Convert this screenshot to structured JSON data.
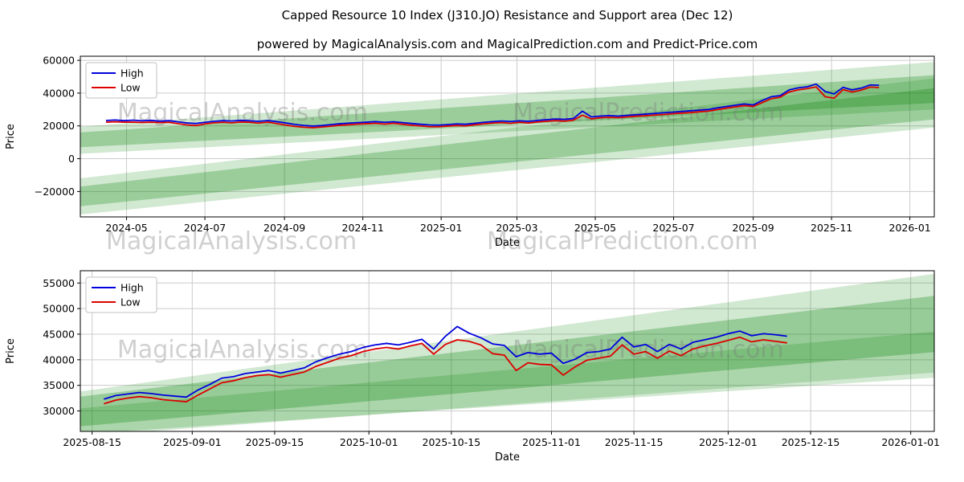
{
  "figure": {
    "title": "Capped Resource 10 Index (J310.JO) Resistance and Support area (Dec 12)",
    "subtitle": "powered by MagicalAnalysis.com and MagicalPrediction.com and Predict-Price.com",
    "watermark_left": "MagicalAnalysis.com",
    "watermark_right": "MagicalPrediction.com"
  },
  "colors": {
    "high": "#0000dd",
    "low": "#dd0000",
    "band": "#008000",
    "grid": "#cccccc",
    "frame": "#000000",
    "watermark": "rgba(120,120,120,0.35)",
    "legend_border": "#c0c0c0"
  },
  "chart_data": [
    {
      "type": "line",
      "xlabel": "Date",
      "ylabel": "Price",
      "legend_position": "upper-left",
      "grid": true,
      "xlim": [
        -20,
        645
      ],
      "ylim": [
        -35500,
        62500
      ],
      "xticks": [
        {
          "t": 16,
          "label": "2024-05"
        },
        {
          "t": 77,
          "label": "2024-07"
        },
        {
          "t": 139,
          "label": "2024-09"
        },
        {
          "t": 200,
          "label": "2024-11"
        },
        {
          "t": 261,
          "label": "2025-01"
        },
        {
          "t": 320,
          "label": "2025-03"
        },
        {
          "t": 381,
          "label": "2025-05"
        },
        {
          "t": 442,
          "label": "2025-07"
        },
        {
          "t": 504,
          "label": "2025-09"
        },
        {
          "t": 565,
          "label": "2025-11"
        },
        {
          "t": 626,
          "label": "2026-01"
        }
      ],
      "yticks": [
        {
          "v": -20000,
          "label": "−20000"
        },
        {
          "v": 0,
          "label": "0"
        },
        {
          "v": 20000,
          "label": "20000"
        },
        {
          "v": 40000,
          "label": "40000"
        },
        {
          "v": 60000,
          "label": "60000"
        }
      ],
      "x": [
        0,
        7,
        14,
        21,
        28,
        35,
        42,
        49,
        56,
        63,
        70,
        77,
        84,
        91,
        98,
        105,
        112,
        119,
        126,
        133,
        140,
        147,
        154,
        161,
        168,
        175,
        182,
        189,
        196,
        203,
        210,
        217,
        224,
        231,
        238,
        245,
        252,
        259,
        266,
        273,
        280,
        287,
        294,
        301,
        308,
        315,
        322,
        329,
        336,
        343,
        350,
        357,
        364,
        371,
        378,
        385,
        392,
        399,
        406,
        413,
        420,
        427,
        434,
        441,
        448,
        455,
        462,
        469,
        476,
        483,
        490,
        497,
        504,
        511,
        518,
        525,
        532,
        539,
        546,
        553,
        560,
        567,
        574,
        581,
        588,
        595,
        602
      ],
      "series": [
        {
          "name": "High",
          "color": "#0000dd",
          "values": [
            23300,
            23600,
            23200,
            23500,
            23100,
            23400,
            22900,
            23200,
            22500,
            21800,
            21500,
            22200,
            22800,
            23200,
            23000,
            23400,
            23100,
            22800,
            23300,
            22600,
            21800,
            20900,
            20300,
            19900,
            20200,
            20800,
            21300,
            21700,
            22000,
            22300,
            22600,
            22200,
            22500,
            22000,
            21500,
            21000,
            20600,
            20500,
            20800,
            21200,
            21000,
            21600,
            22200,
            22600,
            23000,
            22700,
            23100,
            22800,
            23300,
            23800,
            24200,
            24000,
            24500,
            29000,
            25500,
            26000,
            26300,
            26000,
            26500,
            26800,
            27200,
            27600,
            28000,
            28400,
            28800,
            29200,
            29600,
            30000,
            31000,
            31800,
            32600,
            33400,
            32800,
            35500,
            37800,
            38500,
            42000,
            43200,
            43900,
            45500,
            41000,
            39500,
            43500,
            42000,
            43000,
            45000,
            44800
          ]
        },
        {
          "name": "Low",
          "color": "#dd0000",
          "values": [
            22300,
            22500,
            22300,
            22300,
            22100,
            22300,
            22000,
            22200,
            21400,
            20600,
            20200,
            21200,
            21900,
            22200,
            21900,
            22400,
            22200,
            21700,
            22300,
            21400,
            20500,
            19700,
            19200,
            18900,
            19300,
            19800,
            20400,
            20700,
            21100,
            21300,
            21600,
            21100,
            21600,
            21000,
            20400,
            20000,
            19500,
            19500,
            19900,
            20200,
            20000,
            20700,
            21200,
            21700,
            22000,
            21600,
            22200,
            21800,
            22400,
            22800,
            23200,
            22900,
            23500,
            26500,
            24300,
            25000,
            25200,
            25000,
            25500,
            25900,
            26200,
            26600,
            26900,
            27400,
            27800,
            28100,
            28600,
            29000,
            29900,
            30800,
            31600,
            32400,
            31900,
            34200,
            36600,
            37500,
            40700,
            42000,
            42800,
            43800,
            37800,
            36900,
            42100,
            40700,
            41800,
            43700,
            43400
          ]
        }
      ],
      "bands": [
        {
          "x0": -20,
          "y0": [
            3000,
            19500
          ],
          "x1": 645,
          "y1": [
            30000,
            59000
          ],
          "alpha": 0.18
        },
        {
          "x0": -20,
          "y0": [
            7000,
            16000
          ],
          "x1": 645,
          "y1": [
            34000,
            51000
          ],
          "alpha": 0.26
        },
        {
          "x0": -20,
          "y0": [
            -34000,
            -12000
          ],
          "x1": 645,
          "y1": [
            19000,
            49000
          ],
          "alpha": 0.18
        },
        {
          "x0": -20,
          "y0": [
            -29000,
            -17000
          ],
          "x1": 645,
          "y1": [
            24000,
            43000
          ],
          "alpha": 0.26
        }
      ],
      "watermarks": [
        {
          "fx": 0.19,
          "fy": 0.4,
          "text": "MagicalAnalysis.com"
        },
        {
          "fx": 0.665,
          "fy": 0.4,
          "text": "MagicalPrediction.com"
        }
      ]
    },
    {
      "type": "line",
      "xlabel": "Date",
      "ylabel": "Price",
      "legend_position": "upper-left",
      "grid": true,
      "xlim": [
        -2,
        143
      ],
      "ylim": [
        26000,
        57400
      ],
      "xticks": [
        {
          "t": 0,
          "label": "2025-08-15"
        },
        {
          "t": 17,
          "label": "2025-09-01"
        },
        {
          "t": 31,
          "label": "2025-09-15"
        },
        {
          "t": 47,
          "label": "2025-10-01"
        },
        {
          "t": 61,
          "label": "2025-10-15"
        },
        {
          "t": 78,
          "label": "2025-11-01"
        },
        {
          "t": 92,
          "label": "2025-11-15"
        },
        {
          "t": 108,
          "label": "2025-12-01"
        },
        {
          "t": 122,
          "label": "2025-12-15"
        },
        {
          "t": 139,
          "label": "2026-01-01"
        }
      ],
      "yticks": [
        {
          "v": 30000,
          "label": "30000"
        },
        {
          "v": 35000,
          "label": "35000"
        },
        {
          "v": 40000,
          "label": "40000"
        },
        {
          "v": 45000,
          "label": "45000"
        },
        {
          "v": 50000,
          "label": "50000"
        },
        {
          "v": 55000,
          "label": "55000"
        }
      ],
      "x": [
        2,
        4,
        6,
        8,
        10,
        12,
        14,
        16,
        18,
        20,
        22,
        24,
        26,
        28,
        30,
        32,
        34,
        36,
        38,
        40,
        42,
        44,
        46,
        48,
        50,
        52,
        54,
        56,
        58,
        60,
        62,
        64,
        66,
        68,
        70,
        72,
        74,
        76,
        78,
        80,
        82,
        84,
        86,
        88,
        90,
        92,
        94,
        96,
        98,
        100,
        102,
        104,
        106,
        108,
        110,
        112,
        114,
        116,
        118
      ],
      "series": [
        {
          "name": "High",
          "color": "#0000dd",
          "values": [
            32300,
            33000,
            33300,
            33600,
            33400,
            33100,
            32900,
            32700,
            34100,
            35200,
            36400,
            36700,
            37300,
            37600,
            37900,
            37400,
            37900,
            38400,
            39600,
            40400,
            41100,
            41600,
            42400,
            42900,
            43200,
            42900,
            43400,
            44000,
            42100,
            44600,
            46500,
            45200,
            44300,
            43100,
            42800,
            40600,
            41400,
            41100,
            41300,
            39300,
            40100,
            41400,
            41600,
            42100,
            44400,
            42500,
            43000,
            41600,
            43000,
            42100,
            43400,
            43900,
            44400,
            45100,
            45600,
            44700,
            45100,
            44900,
            44600
          ]
        },
        {
          "name": "Low",
          "color": "#dd0000",
          "values": [
            31400,
            32100,
            32500,
            32800,
            32600,
            32200,
            32000,
            31800,
            33100,
            34300,
            35500,
            35900,
            36500,
            36900,
            37100,
            36600,
            37100,
            37600,
            38700,
            39500,
            40300,
            40800,
            41600,
            42100,
            42400,
            42100,
            42700,
            43200,
            41100,
            43000,
            43900,
            43600,
            42900,
            41200,
            40900,
            37900,
            39400,
            39100,
            39000,
            37000,
            38600,
            39900,
            40300,
            40700,
            42900,
            41100,
            41600,
            40300,
            41700,
            40800,
            42100,
            42700,
            43200,
            43800,
            44400,
            43500,
            43900,
            43600,
            43300
          ]
        }
      ],
      "bands": [
        {
          "x0": -2,
          "y0": [
            25000,
            33800
          ],
          "x1": 143,
          "y1": [
            37500,
            56800
          ],
          "alpha": 0.18
        },
        {
          "x0": -2,
          "y0": [
            27000,
            32800
          ],
          "x1": 143,
          "y1": [
            41500,
            52500
          ],
          "alpha": 0.28
        },
        {
          "x0": -2,
          "y0": [
            25500,
            30500
          ],
          "x1": 143,
          "y1": [
            36500,
            45500
          ],
          "alpha": 0.18
        }
      ],
      "watermarks": [
        {
          "fx": 0.19,
          "fy": 0.54,
          "text": "MagicalAnalysis.com"
        },
        {
          "fx": 0.665,
          "fy": 0.54,
          "text": "MagicalPrediction.com"
        }
      ]
    }
  ]
}
